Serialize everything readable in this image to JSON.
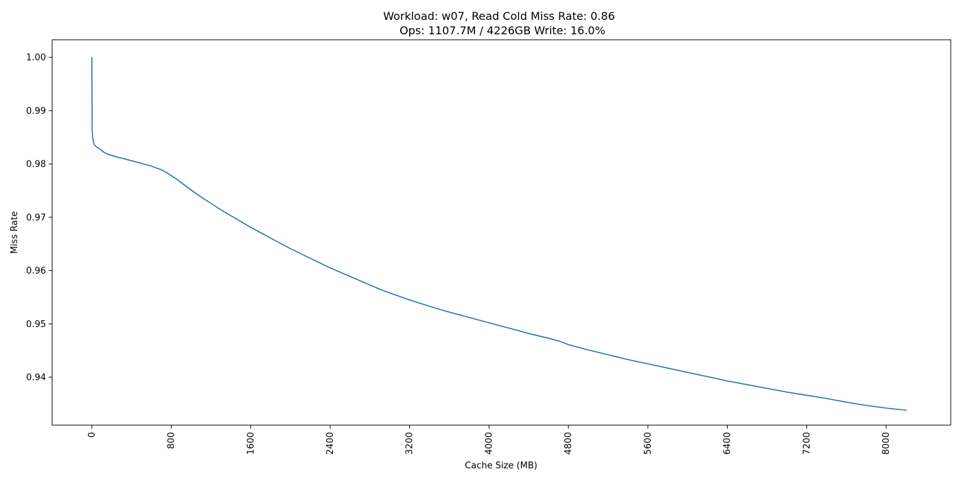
{
  "chart_data": {
    "type": "line",
    "title_line1": "Workload: w07, Read Cold Miss Rate: 0.86",
    "title_line2": "Ops: 1107.7M / 4226GB Write: 16.0%",
    "xlabel": "Cache Size (MB)",
    "ylabel": "Miss Rate",
    "xlim": [
      -400,
      8650
    ],
    "ylim": [
      0.931,
      1.0033
    ],
    "xticks": [
      0,
      800,
      1600,
      2400,
      3200,
      4000,
      4800,
      5600,
      6400,
      7200,
      8000
    ],
    "yticks": [
      0.94,
      0.95,
      0.96,
      0.97,
      0.98,
      0.99,
      1.0
    ],
    "ytick_labels": [
      "0.94",
      "0.95",
      "0.96",
      "0.97",
      "0.98",
      "0.99",
      "1.00"
    ],
    "grid": false,
    "colors": {
      "line": "#1f77b4",
      "axis": "#000000"
    },
    "series": [
      {
        "x": [
          0,
          0,
          3,
          8,
          15,
          25,
          40,
          60,
          80,
          100,
          120,
          150,
          200,
          250,
          300,
          400,
          500,
          600,
          700,
          760,
          800,
          850,
          900,
          1000,
          1100,
          1200,
          1300,
          1400,
          1500,
          1600,
          1700,
          1800,
          1900,
          2000,
          2100,
          2200,
          2300,
          2400,
          2500,
          2600,
          2700,
          2800,
          2900,
          3000,
          3200,
          3400,
          3600,
          3800,
          4000,
          4200,
          4400,
          4600,
          4700,
          4800,
          5000,
          5200,
          5400,
          5600,
          5800,
          6000,
          6200,
          6400,
          6600,
          6800,
          7000,
          7200,
          7400,
          7600,
          7800,
          8000,
          8200
        ],
        "y": [
          1.0,
          0.9985,
          0.9865,
          0.985,
          0.9842,
          0.9836,
          0.9833,
          0.983,
          0.9828,
          0.9825,
          0.9822,
          0.9819,
          0.9816,
          0.9813,
          0.9811,
          0.9806,
          0.9801,
          0.9796,
          0.9789,
          0.9783,
          0.9778,
          0.9772,
          0.9765,
          0.9751,
          0.9738,
          0.9726,
          0.9714,
          0.9703,
          0.9692,
          0.9681,
          0.9671,
          0.9661,
          0.9651,
          0.9641,
          0.9632,
          0.9623,
          0.9614,
          0.9605,
          0.9597,
          0.9589,
          0.9581,
          0.9573,
          0.9565,
          0.9558,
          0.9545,
          0.9533,
          0.9522,
          0.9512,
          0.9502,
          0.9492,
          0.9482,
          0.9473,
          0.9468,
          0.9461,
          0.9451,
          0.9442,
          0.9433,
          0.9425,
          0.9417,
          0.9409,
          0.9401,
          0.9393,
          0.9386,
          0.9379,
          0.9372,
          0.9366,
          0.936,
          0.9353,
          0.9347,
          0.9342,
          0.9338
        ]
      }
    ]
  }
}
